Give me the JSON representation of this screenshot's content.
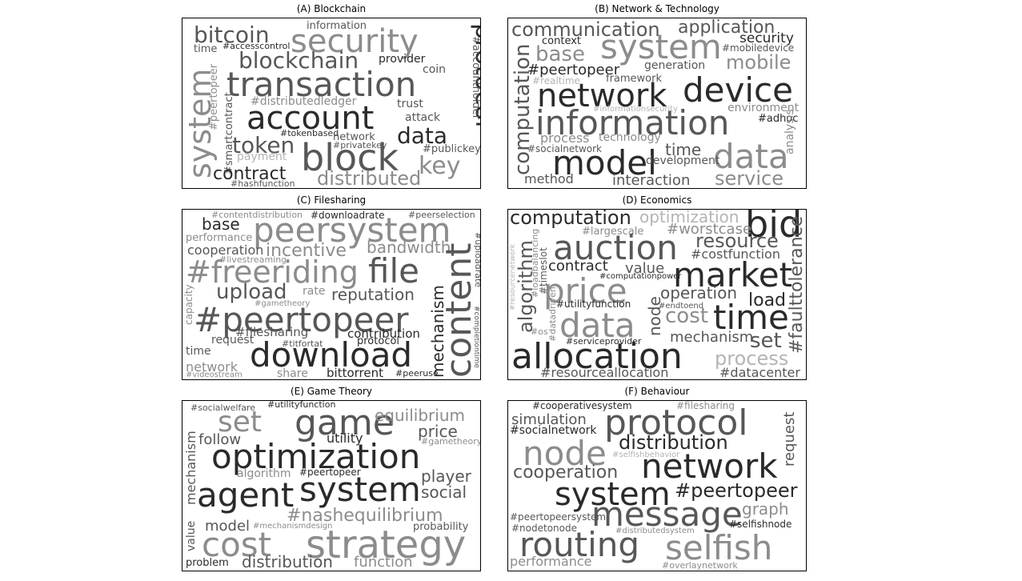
{
  "palette": {
    "dark": "#2a2a2a",
    "mid": "#575757",
    "light": "#8c8c8c",
    "pale": "#b4b4b4"
  },
  "panels": [
    {
      "title": "(A) Blockchain",
      "words": [
        {
          "text": "security",
          "tone": "light"
        },
        {
          "text": "bitcoin",
          "tone": "mid"
        },
        {
          "text": "information",
          "tone": "mid"
        },
        {
          "text": "#accesscontrol",
          "tone": "dark"
        },
        {
          "text": "time",
          "tone": "mid"
        },
        {
          "text": "protocol",
          "tone": "dark"
        },
        {
          "text": "#accountholder",
          "tone": "mid"
        },
        {
          "text": "blockchain",
          "tone": "mid"
        },
        {
          "text": "provider",
          "tone": "dark"
        },
        {
          "text": "coin",
          "tone": "mid"
        },
        {
          "text": "transaction",
          "tone": "mid"
        },
        {
          "text": "system",
          "tone": "light"
        },
        {
          "text": "#peertopeer",
          "tone": "light"
        },
        {
          "text": "#distributedledger",
          "tone": "light"
        },
        {
          "text": "trust",
          "tone": "mid"
        },
        {
          "text": "#smartcontract",
          "tone": "mid"
        },
        {
          "text": "account",
          "tone": "dark"
        },
        {
          "text": "attack",
          "tone": "mid"
        },
        {
          "text": "data",
          "tone": "dark"
        },
        {
          "text": "#tokenbased",
          "tone": "dark"
        },
        {
          "text": "network",
          "tone": "mid"
        },
        {
          "text": "token",
          "tone": "mid"
        },
        {
          "text": "#privatekey",
          "tone": "mid"
        },
        {
          "text": "#publickey",
          "tone": "mid"
        },
        {
          "text": "block",
          "tone": "mid"
        },
        {
          "text": "payment",
          "tone": "pale"
        },
        {
          "text": "key",
          "tone": "light"
        },
        {
          "text": "contract",
          "tone": "dark"
        },
        {
          "text": "distributed",
          "tone": "light"
        },
        {
          "text": "#hashfunction",
          "tone": "mid"
        }
      ]
    },
    {
      "title": "(B) Network & Technology",
      "words": [
        {
          "text": "communication",
          "tone": "mid"
        },
        {
          "text": "application",
          "tone": "mid"
        },
        {
          "text": "context",
          "tone": "dark"
        },
        {
          "text": "system",
          "tone": "light"
        },
        {
          "text": "security",
          "tone": "dark"
        },
        {
          "text": "base",
          "tone": "light"
        },
        {
          "text": "#mobiledevice",
          "tone": "mid"
        },
        {
          "text": "mobile",
          "tone": "light"
        },
        {
          "text": "generation",
          "tone": "mid"
        },
        {
          "text": "#peertopeer",
          "tone": "dark"
        },
        {
          "text": "framework",
          "tone": "mid"
        },
        {
          "text": "#realtime",
          "tone": "pale"
        },
        {
          "text": "device",
          "tone": "dark"
        },
        {
          "text": "network",
          "tone": "dark"
        },
        {
          "text": "computation",
          "tone": "mid"
        },
        {
          "text": "environment",
          "tone": "light"
        },
        {
          "text": "#informationsecurity",
          "tone": "pale"
        },
        {
          "text": "information",
          "tone": "mid"
        },
        {
          "text": "#adhoc",
          "tone": "dark"
        },
        {
          "text": "analysis",
          "tone": "light"
        },
        {
          "text": "process",
          "tone": "light"
        },
        {
          "text": "technology",
          "tone": "light"
        },
        {
          "text": "#socialnetwork",
          "tone": "mid"
        },
        {
          "text": "time",
          "tone": "mid"
        },
        {
          "text": "data",
          "tone": "light"
        },
        {
          "text": "model",
          "tone": "dark"
        },
        {
          "text": "development",
          "tone": "mid"
        },
        {
          "text": "method",
          "tone": "mid"
        },
        {
          "text": "interaction",
          "tone": "mid"
        },
        {
          "text": "service",
          "tone": "light"
        }
      ]
    },
    {
      "title": "(C) Filesharing",
      "words": [
        {
          "text": "#contentdistribution",
          "tone": "light"
        },
        {
          "text": "#downloadrate",
          "tone": "dark"
        },
        {
          "text": "#peerselection",
          "tone": "mid"
        },
        {
          "text": "base",
          "tone": "dark"
        },
        {
          "text": "peersystem",
          "tone": "light"
        },
        {
          "text": "performance",
          "tone": "light"
        },
        {
          "text": "bandwidth",
          "tone": "light"
        },
        {
          "text": "#uploadrate",
          "tone": "mid"
        },
        {
          "text": "cooperation",
          "tone": "mid"
        },
        {
          "text": "incentive",
          "tone": "light"
        },
        {
          "text": "#livestreaming",
          "tone": "light"
        },
        {
          "text": "#freeriding",
          "tone": "light"
        },
        {
          "text": "file",
          "tone": "mid"
        },
        {
          "text": "content",
          "tone": "mid"
        },
        {
          "text": "upload",
          "tone": "mid"
        },
        {
          "text": "rate",
          "tone": "light"
        },
        {
          "text": "reputation",
          "tone": "mid"
        },
        {
          "text": "capacity",
          "tone": "light"
        },
        {
          "text": "#gametheory",
          "tone": "light"
        },
        {
          "text": "mechanism",
          "tone": "dark"
        },
        {
          "text": "#peertopeer",
          "tone": "mid"
        },
        {
          "text": "#completiontime",
          "tone": "mid"
        },
        {
          "text": "#filesharing",
          "tone": "mid"
        },
        {
          "text": "contribution",
          "tone": "dark"
        },
        {
          "text": "request",
          "tone": "mid"
        },
        {
          "text": "#titfortat",
          "tone": "mid"
        },
        {
          "text": "protocol",
          "tone": "dark"
        },
        {
          "text": "time",
          "tone": "mid"
        },
        {
          "text": "download",
          "tone": "dark"
        },
        {
          "text": "network",
          "tone": "light"
        },
        {
          "text": "#videostream",
          "tone": "light"
        },
        {
          "text": "share",
          "tone": "light"
        },
        {
          "text": "bittorrent",
          "tone": "dark"
        },
        {
          "text": "#peeruse",
          "tone": "dark"
        }
      ]
    },
    {
      "title": "(D) Economics",
      "words": [
        {
          "text": "computation",
          "tone": "dark"
        },
        {
          "text": "optimization",
          "tone": "pale"
        },
        {
          "text": "bid",
          "tone": "dark"
        },
        {
          "text": "#largescale",
          "tone": "light"
        },
        {
          "text": "#worstcase",
          "tone": "light"
        },
        {
          "text": "auction",
          "tone": "mid"
        },
        {
          "text": "resource",
          "tone": "mid"
        },
        {
          "text": "algorithm",
          "tone": "mid"
        },
        {
          "text": "#resourcenetwork",
          "tone": "pale"
        },
        {
          "text": "#loadbalancing",
          "tone": "light"
        },
        {
          "text": "#costfunction",
          "tone": "mid"
        },
        {
          "text": "#faulttolerance",
          "tone": "mid"
        },
        {
          "text": "#timeslot",
          "tone": "mid"
        },
        {
          "text": "contract",
          "tone": "dark"
        },
        {
          "text": "value",
          "tone": "mid"
        },
        {
          "text": "market",
          "tone": "dark"
        },
        {
          "text": "#computationpower",
          "tone": "dark"
        },
        {
          "text": "price",
          "tone": "light"
        },
        {
          "text": "operation",
          "tone": "mid"
        },
        {
          "text": "load",
          "tone": "dark"
        },
        {
          "text": "#utilityfunction",
          "tone": "dark"
        },
        {
          "text": "node",
          "tone": "mid"
        },
        {
          "text": "cost",
          "tone": "light"
        },
        {
          "text": "#endtoend",
          "tone": "mid"
        },
        {
          "text": "time",
          "tone": "dark"
        },
        {
          "text": "#datadriven",
          "tone": "light"
        },
        {
          "text": "data",
          "tone": "light"
        },
        {
          "text": "#os",
          "tone": "light"
        },
        {
          "text": "mechanism",
          "tone": "mid"
        },
        {
          "text": "set",
          "tone": "mid"
        },
        {
          "text": "#serviceprovider",
          "tone": "dark"
        },
        {
          "text": "allocation",
          "tone": "dark"
        },
        {
          "text": "process",
          "tone": "pale"
        },
        {
          "text": "#resourceallocation",
          "tone": "mid"
        },
        {
          "text": "#datacenter",
          "tone": "mid"
        }
      ]
    },
    {
      "title": "(E) Game Theory",
      "words": [
        {
          "text": "#socialwelfare",
          "tone": "mid"
        },
        {
          "text": "#utilityfunction",
          "tone": "dark"
        },
        {
          "text": "set",
          "tone": "light"
        },
        {
          "text": "game",
          "tone": "mid"
        },
        {
          "text": "equilibrium",
          "tone": "light"
        },
        {
          "text": "mechanism",
          "tone": "mid"
        },
        {
          "text": "follow",
          "tone": "mid"
        },
        {
          "text": "utility",
          "tone": "dark"
        },
        {
          "text": "price",
          "tone": "mid"
        },
        {
          "text": "#gametheory",
          "tone": "light"
        },
        {
          "text": "optimization",
          "tone": "dark"
        },
        {
          "text": "player",
          "tone": "mid"
        },
        {
          "text": "algorithm",
          "tone": "light"
        },
        {
          "text": "#peertopeer",
          "tone": "dark"
        },
        {
          "text": "agent",
          "tone": "dark"
        },
        {
          "text": "system",
          "tone": "dark"
        },
        {
          "text": "social",
          "tone": "mid"
        },
        {
          "text": "#nashequilibrium",
          "tone": "light"
        },
        {
          "text": "value",
          "tone": "mid"
        },
        {
          "text": "model",
          "tone": "mid"
        },
        {
          "text": "#mechanismdesign",
          "tone": "light"
        },
        {
          "text": "probability",
          "tone": "mid"
        },
        {
          "text": "cost",
          "tone": "light"
        },
        {
          "text": "strategy",
          "tone": "light"
        },
        {
          "text": "problem",
          "tone": "dark"
        },
        {
          "text": "distribution",
          "tone": "mid"
        },
        {
          "text": "function",
          "tone": "light"
        }
      ]
    },
    {
      "title": "(F) Behaviour",
      "words": [
        {
          "text": "#cooperativesystem",
          "tone": "dark"
        },
        {
          "text": "#filesharing",
          "tone": "light"
        },
        {
          "text": "simulation",
          "tone": "mid"
        },
        {
          "text": "protocol",
          "tone": "mid"
        },
        {
          "text": "#socialnetwork",
          "tone": "dark"
        },
        {
          "text": "request",
          "tone": "mid"
        },
        {
          "text": "distribution",
          "tone": "dark"
        },
        {
          "text": "node",
          "tone": "light"
        },
        {
          "text": "#selfishbehavior",
          "tone": "pale"
        },
        {
          "text": "network",
          "tone": "dark"
        },
        {
          "text": "cooperation",
          "tone": "mid"
        },
        {
          "text": "system",
          "tone": "dark"
        },
        {
          "text": "#peertopeer",
          "tone": "dark"
        },
        {
          "text": "graph",
          "tone": "light"
        },
        {
          "text": "message",
          "tone": "mid"
        },
        {
          "text": "#peertopeersystem",
          "tone": "mid"
        },
        {
          "text": "#selfishnode",
          "tone": "dark"
        },
        {
          "text": "#nodetonode",
          "tone": "mid"
        },
        {
          "text": "#distributedsystem",
          "tone": "light"
        },
        {
          "text": "routing",
          "tone": "mid"
        },
        {
          "text": "selfish",
          "tone": "light"
        },
        {
          "text": "performance",
          "tone": "light"
        },
        {
          "text": "#overlaynetwork",
          "tone": "light"
        }
      ]
    }
  ]
}
